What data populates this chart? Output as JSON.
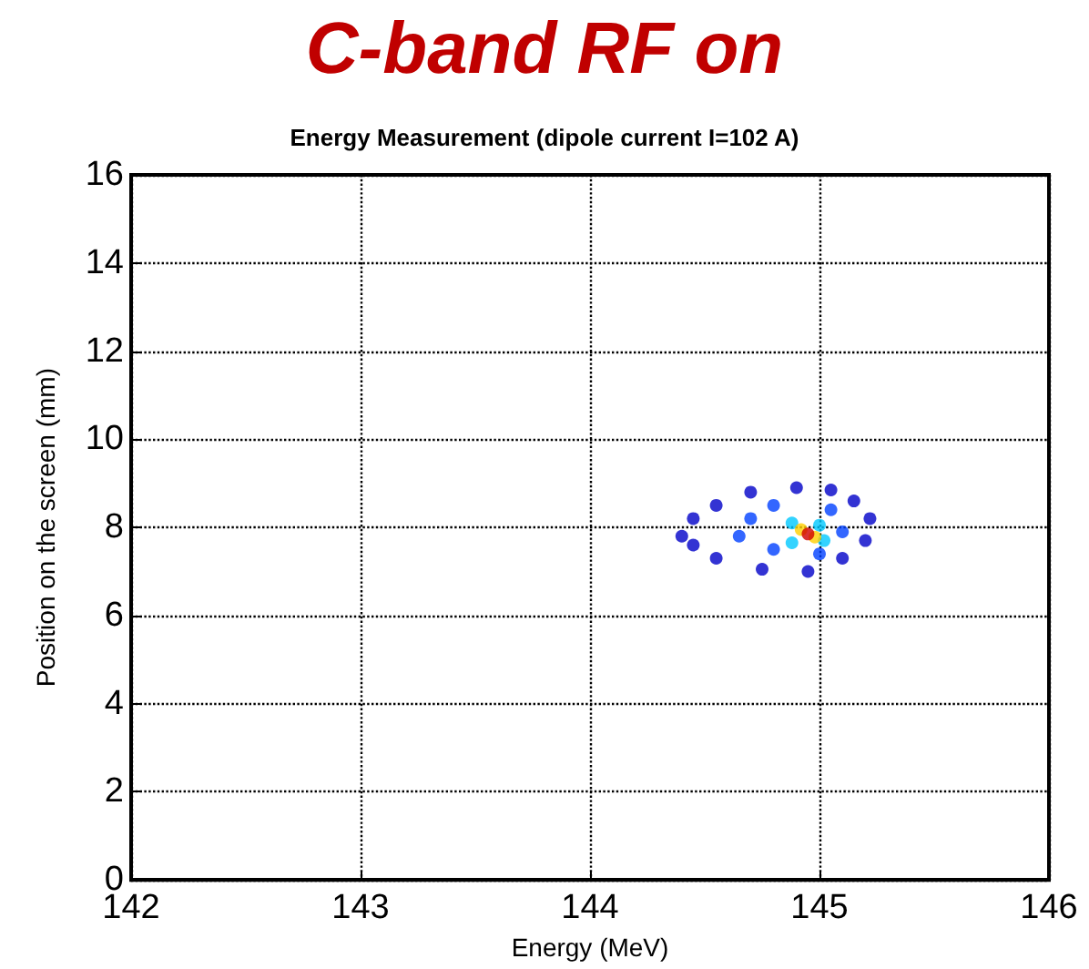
{
  "chart_data": {
    "type": "scatter",
    "title": "C-band RF on",
    "subtitle": "Energy Measurement (dipole current I=102 A)",
    "xlabel": "Energy (MeV)",
    "ylabel": "Position on the screen (mm)",
    "xlim": [
      142,
      146
    ],
    "xticks": [
      142,
      143,
      144,
      145,
      146
    ],
    "ylim": [
      0,
      16
    ],
    "yticks": [
      0,
      2,
      4,
      6,
      8,
      10,
      12,
      14,
      16
    ],
    "grid": true,
    "marker": "circle",
    "series": [
      {
        "color": "#0000c8",
        "x": [
          144.4,
          144.45,
          144.55,
          144.7,
          144.9,
          145.05,
          145.15,
          145.22,
          145.2,
          145.1,
          144.95,
          144.75,
          144.55,
          144.45
        ],
        "values": [
          7.8,
          8.2,
          8.5,
          8.8,
          8.9,
          8.85,
          8.6,
          8.2,
          7.7,
          7.3,
          7.0,
          7.05,
          7.3,
          7.6
        ]
      },
      {
        "color": "#0040ff",
        "x": [
          144.7,
          144.8,
          145.05,
          145.1,
          145.0,
          144.8,
          144.65
        ],
        "values": [
          8.2,
          8.5,
          8.4,
          7.9,
          7.4,
          7.5,
          7.8
        ]
      },
      {
        "color": "#00c8ff",
        "x": [
          144.88,
          145.0,
          145.02,
          144.88
        ],
        "values": [
          8.1,
          8.05,
          7.7,
          7.65
        ]
      },
      {
        "color": "#ffd000",
        "x": [
          144.92,
          144.98
        ],
        "values": [
          7.95,
          7.78
        ]
      },
      {
        "color": "#d00000",
        "x": [
          144.95
        ],
        "values": [
          7.85
        ]
      }
    ]
  }
}
